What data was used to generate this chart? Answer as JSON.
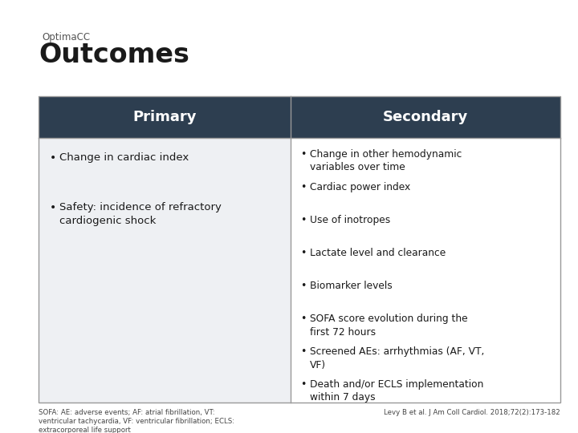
{
  "title_small": "OptimaCC",
  "title_large": "Outcomes",
  "header_color": "#2d3e50",
  "header_text_color": "#ffffff",
  "primary_body_color": "#eef0f3",
  "secondary_body_color": "#ffffff",
  "border_color": "#999999",
  "text_color": "#1a1a1a",
  "primary_header": "Primary",
  "secondary_header": "Secondary",
  "primary_bullets": [
    "Change in cardiac index",
    "Safety: incidence of refractory\ncardiogenic shock"
  ],
  "secondary_bullets": [
    "Change in other hemodynamic\nvariables over time",
    "Cardiac power index",
    "Use of inotropes",
    "Lactate level and clearance",
    "Biomarker levels",
    "SOFA score evolution during the\nfirst 72 hours",
    "Screened AEs: arrhythmias (AF, VT,\nVF)",
    "Death and/or ECLS implementation\nwithin 7 days"
  ],
  "footnote": "SOFA: AE: adverse events; AF: atrial fibrillation, VT:\nventricular tachycardia, VF: ventricular fibrillation; ECLS:\nextracorporeal life support",
  "citation": "Levy B et al. J Am Coll Cardiol. 2018;72(2):173-182",
  "bg_color": "#ffffff"
}
